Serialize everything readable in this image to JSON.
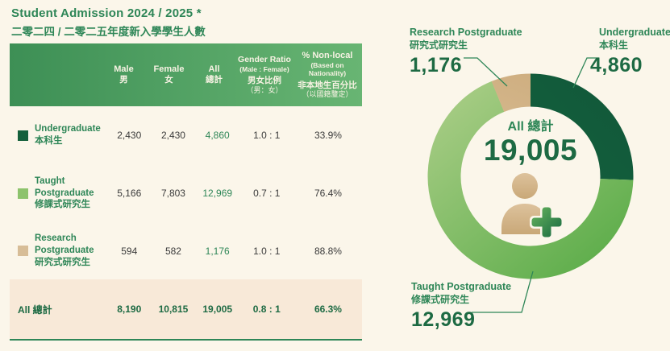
{
  "header": {
    "title_en": "Student Admission 2024 / 2025 *",
    "title_zh": "二零二四 / 二零二五年度新入學學生人數"
  },
  "table": {
    "columns": [
      {
        "en": "Male",
        "zh": "男"
      },
      {
        "en": "Female",
        "zh": "女"
      },
      {
        "en": "All",
        "zh": "總計"
      },
      {
        "en": "Gender Ratio",
        "en_sub": "(Male : Female)",
        "zh": "男女比例",
        "zh_sub": "（男：女）"
      },
      {
        "en": "% Non-local",
        "en_sub": "(Based on Nationality)",
        "zh": "非本地生百分比",
        "zh_sub": "（以國籍釐定）"
      }
    ],
    "rows": [
      {
        "label_en": "Undergraduate",
        "label_zh": "本科生",
        "swatch": "#14603c",
        "male": "2,430",
        "female": "2,430",
        "all": "4,860",
        "ratio": "1.0 : 1",
        "nonlocal": "33.9%"
      },
      {
        "label_en": "Taught Postgraduate",
        "label_zh": "修課式研究生",
        "swatch": "#8dc36c",
        "male": "5,166",
        "female": "7,803",
        "all": "12,969",
        "ratio": "0.7 : 1",
        "nonlocal": "76.4%"
      },
      {
        "label_en": "Research Postgraduate",
        "label_zh": "研究式研究生",
        "swatch": "#d7bd97",
        "male": "594",
        "female": "582",
        "all": "1,176",
        "ratio": "1.0 : 1",
        "nonlocal": "88.8%"
      }
    ],
    "total": {
      "label": "All 總計",
      "male": "8,190",
      "female": "10,815",
      "all": "19,005",
      "ratio": "0.8 : 1",
      "nonlocal": "66.3%"
    }
  },
  "chart": {
    "center_label": "All 總計",
    "center_value": "19,005",
    "callouts": [
      {
        "en": "Research Postgraduate",
        "zh": "研究式研究生",
        "value": "1,176"
      },
      {
        "en": "Undergraduate",
        "zh": "本科生",
        "value": "4,860"
      },
      {
        "en": "Taught Postgraduate",
        "zh": "修課式研究生",
        "value": "12,969"
      }
    ]
  },
  "chart_data": {
    "type": "pie",
    "variant": "donut",
    "title": "All 總計 19,005",
    "total": 19005,
    "categories": [
      "Undergraduate 本科生",
      "Taught Postgraduate 修課式研究生",
      "Research Postgraduate 研究式研究生"
    ],
    "values": [
      4860,
      12969,
      1176
    ],
    "segments": [
      {
        "label": "Undergraduate 本科生",
        "value": 4860,
        "color": "#17653f",
        "color2": "#11593a"
      },
      {
        "label": "Taught Postgraduate 修課式研究生",
        "value": 12969,
        "color": "#a9cd86",
        "color2": "#5fae4c"
      },
      {
        "label": "Research Postgraduate 研究式研究生",
        "value": 1176,
        "color": "#e3cba6",
        "color2": "#ccab7c"
      }
    ],
    "start_angle_deg": 0,
    "direction": "clockwise",
    "legend_position": "callouts"
  },
  "colors": {
    "background": "#fbf6ea",
    "accent_green": "#2e8657",
    "dark_green": "#1d6a43",
    "header_gradient_left": "#3d8f55",
    "header_gradient_right": "#68b573",
    "header_text": "#f7f2e3",
    "separator": "#4a9b66",
    "total_row_bg": "#f8e9d8",
    "body_text": "#3a3a3a"
  }
}
